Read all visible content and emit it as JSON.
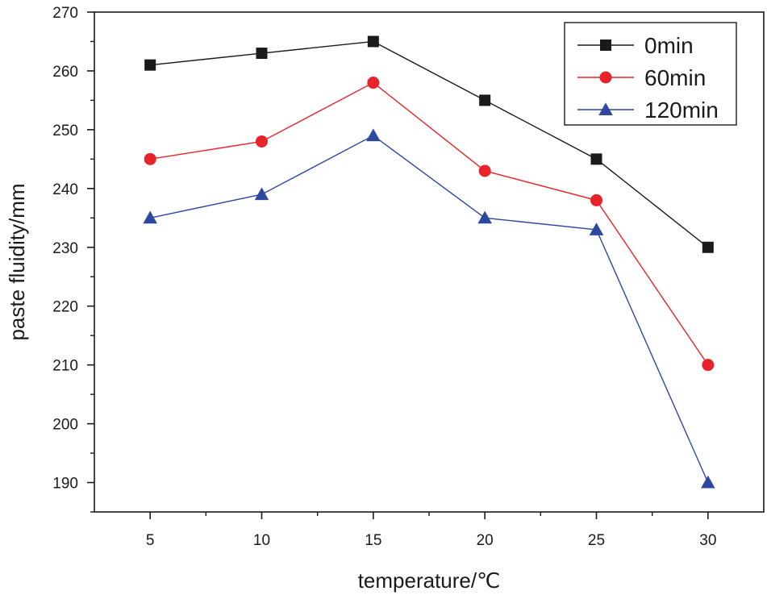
{
  "chart_data": {
    "type": "line",
    "title": "",
    "xlabel": "temperature/℃",
    "ylabel": "paste fluidity/mm",
    "x": [
      5,
      10,
      15,
      20,
      25,
      30
    ],
    "xlim": [
      2.5,
      32.5
    ],
    "ylim": [
      185,
      270
    ],
    "xticks": [
      5,
      10,
      15,
      20,
      25,
      30
    ],
    "yticks": [
      190,
      200,
      210,
      220,
      230,
      240,
      250,
      260,
      270
    ],
    "grid": false,
    "legend_position": "top-right",
    "series": [
      {
        "name": "0min",
        "color": "#1a1a1a",
        "marker": "square",
        "values": [
          261,
          263,
          265,
          255,
          245,
          230
        ]
      },
      {
        "name": "60min",
        "color": "#e8232a",
        "marker": "circle",
        "values": [
          245,
          248,
          258,
          243,
          238,
          210
        ]
      },
      {
        "name": "120min",
        "color": "#2e47a0",
        "marker": "triangle",
        "values": [
          235,
          239,
          249,
          235,
          233,
          190
        ]
      }
    ]
  }
}
